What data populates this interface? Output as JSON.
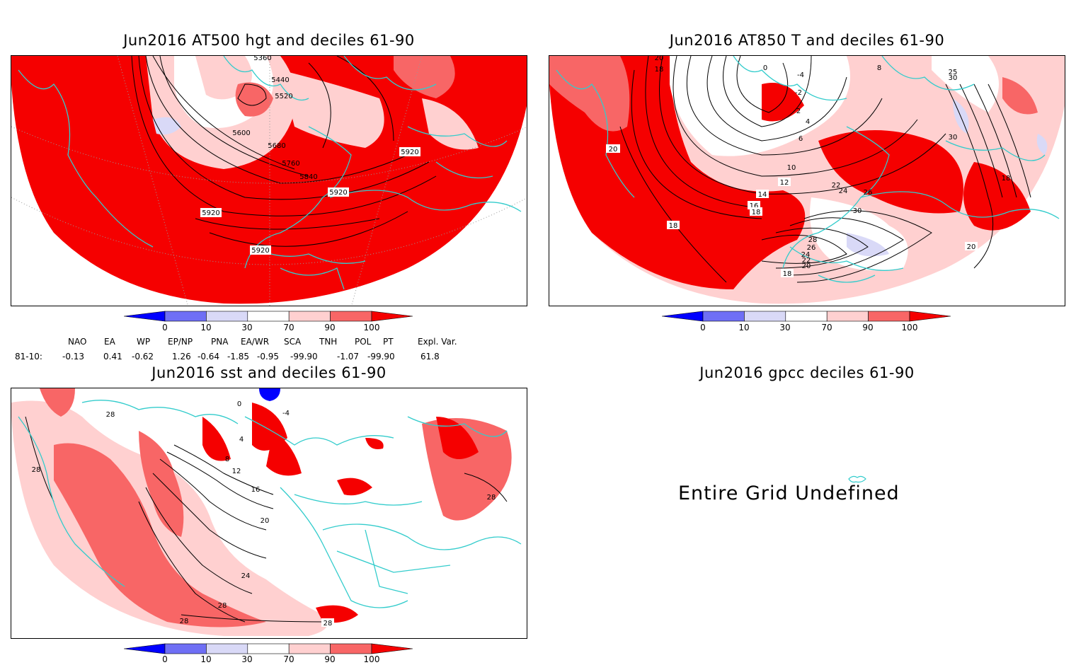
{
  "panels": {
    "z500": {
      "title": "Jun2016 AT500 hgt and deciles 61-90",
      "contour_labels": [
        "5360",
        "5440",
        "5520",
        "5600",
        "5680",
        "5760",
        "5840",
        "5920",
        "5920",
        "5920",
        "5920"
      ]
    },
    "t850": {
      "title": "Jun2016 AT850 T and deciles 61-90",
      "contour_labels": [
        "20",
        "18",
        "0",
        "-4",
        "-2",
        "2",
        "4",
        "6",
        "8",
        "25",
        "30",
        "30",
        "20",
        "10",
        "12",
        "14",
        "16",
        "18",
        "22",
        "24",
        "26",
        "30",
        "28",
        "26",
        "24",
        "22",
        "20",
        "18",
        "18",
        "20",
        "18"
      ]
    },
    "sst": {
      "title": "Jun2016 sst and deciles 61-90",
      "contour_labels": [
        "28",
        "4",
        "8",
        "12",
        "16",
        "20",
        "24",
        "28",
        "28",
        "28",
        "28",
        "28",
        "0",
        "-4"
      ]
    },
    "gpcc": {
      "title": "Jun2016 gpcc deciles 61-90",
      "message": "Entire Grid Undefined"
    }
  },
  "colorbar": {
    "labels": [
      "0",
      "10",
      "30",
      "70",
      "90",
      "100"
    ],
    "colors": [
      "#0000ff",
      "#6f6ff5",
      "#d9d9f7",
      "#ffffff",
      "#ffd0d0",
      "#f86666",
      "#f50000"
    ]
  },
  "indices": {
    "names": [
      "NAO",
      "EA",
      "WP",
      "EP/NP",
      "PNA",
      "EA/WR",
      "SCA",
      "TNH",
      "POL",
      "PT",
      "Expl. Var."
    ],
    "period": "81-10:",
    "values": [
      "-0.13",
      "0.41",
      "-0.62",
      "1.26",
      "-0.64",
      "-1.85",
      "-0.95",
      "-99.90",
      "-1.07",
      "-99.90",
      "61.8"
    ]
  },
  "colors": {
    "coast": "#33cccc",
    "strong_pos": "#f50000",
    "mod_pos": "#f86666",
    "weak_pos": "#ffd0d0",
    "weak_neg": "#d9d9f7",
    "contour": "#000000"
  }
}
